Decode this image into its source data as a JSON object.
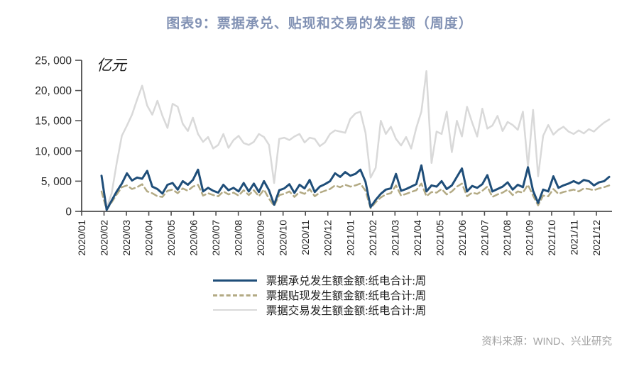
{
  "title": "图表9：票据承兑、贴现和交易的发生额（周度）",
  "source": "资料来源：WIND、兴业研究",
  "unit_label": "亿元",
  "colors": {
    "title_text": "#8292b4",
    "acceptance_line": "#1f4e79",
    "discount_line": "#b3aa84",
    "trading_line": "#d9d9d9",
    "axis": "#4d4d4d",
    "tick_text": "#262626",
    "source_text": "#a3a3a3"
  },
  "legend": [
    {
      "label": "票据承兑发生额金额:纸电合计:周",
      "style": "solid",
      "color": "#1f4e79"
    },
    {
      "label": "票据贴现发生额金额:纸电合计:周",
      "style": "dashed",
      "color": "#b3aa84"
    },
    {
      "label": "票据交易发生额金额:纸电合计:周",
      "style": "solid",
      "color": "#d9d9d9"
    }
  ],
  "chart_data": {
    "type": "line",
    "title": "图表9：票据承兑、贴现和交易的发生额（周度）",
    "xlabel": "",
    "ylabel": "亿元",
    "ylim": [
      0,
      25000
    ],
    "ytick_step": 5000,
    "ytick_labels": [
      "0",
      "5, 000",
      "10, 000",
      "15, 000",
      "20, 000",
      "25, 000"
    ],
    "grid": false,
    "legend_position": "bottom",
    "x_unit": "week",
    "x_tick_labels": [
      "2020/01",
      "2020/02",
      "2020/03",
      "2020/04",
      "2020/05",
      "2020/06",
      "2020/07",
      "2020/08",
      "2020/09",
      "2020/10",
      "2020/11",
      "2020/12",
      "2021/01",
      "2021/02",
      "2021/03",
      "2021/04",
      "2021/05",
      "2021/06",
      "2021/07",
      "2021/08",
      "2021/09",
      "2021/10",
      "2021/11",
      "2021/12"
    ],
    "series": [
      {
        "name": "票据承兑发生额金额:纸电合计:周",
        "color": "#1f4e79",
        "style": "solid",
        "values": [
          5900,
          250,
          1800,
          3300,
          4600,
          6300,
          5100,
          5600,
          5400,
          6700,
          4100,
          3700,
          2950,
          4400,
          4700,
          3600,
          5000,
          4400,
          5200,
          6900,
          3300,
          3900,
          3400,
          3100,
          4400,
          3500,
          3900,
          3300,
          4700,
          3300,
          4600,
          3200,
          5000,
          3500,
          1100,
          3500,
          3800,
          4500,
          3050,
          4400,
          3800,
          5200,
          3200,
          4100,
          4500,
          5000,
          6300,
          5700,
          6500,
          5900,
          6200,
          6900,
          4900,
          700,
          1900,
          2900,
          3600,
          3800,
          6200,
          3400,
          3700,
          4100,
          4500,
          7600,
          3300,
          4300,
          4100,
          5000,
          3700,
          4300,
          5700,
          7100,
          3300,
          4200,
          3900,
          4500,
          6000,
          3300,
          3700,
          4100,
          4800,
          3600,
          4400,
          4000,
          7300,
          3400,
          1400,
          3600,
          3300,
          5800,
          3900,
          4300,
          4600,
          5000,
          4600,
          5200,
          5000,
          4300,
          4800,
          5000,
          5700
        ]
      },
      {
        "name": "票据贴现发生额金额:纸电合计:周",
        "color": "#b3aa84",
        "style": "dashed",
        "values": [
          3300,
          250,
          1500,
          2800,
          4000,
          4300,
          3700,
          4000,
          4500,
          3300,
          3000,
          2500,
          2400,
          3400,
          3600,
          3000,
          3800,
          3400,
          4100,
          4400,
          2600,
          3000,
          2700,
          2500,
          3300,
          2800,
          3100,
          2600,
          3500,
          2700,
          3500,
          2500,
          3600,
          2100,
          900,
          2700,
          2900,
          3300,
          2400,
          3200,
          2900,
          3700,
          2500,
          3100,
          3400,
          3700,
          4300,
          4000,
          4400,
          4100,
          4300,
          4600,
          3400,
          500,
          1500,
          2300,
          2800,
          3000,
          4300,
          2600,
          2900,
          3200,
          3500,
          4600,
          2500,
          3200,
          3100,
          3700,
          2800,
          3300,
          4100,
          4600,
          2500,
          3100,
          2900,
          3400,
          4100,
          2400,
          2800,
          3100,
          3600,
          2700,
          3300,
          3100,
          4400,
          2600,
          1000,
          2600,
          2500,
          3700,
          2900,
          3200,
          3400,
          3600,
          3300,
          3800,
          3700,
          3500,
          3800,
          4000,
          4300
        ]
      },
      {
        "name": "票据交易发生额金额:纸电合计:周",
        "color": "#d9d9d9",
        "style": "solid",
        "values": [
          null,
          500,
          3000,
          8000,
          12500,
          14200,
          16000,
          18500,
          20800,
          17500,
          16000,
          18300,
          15800,
          13800,
          17800,
          17300,
          14500,
          13300,
          15500,
          12800,
          11500,
          12300,
          10400,
          11000,
          12800,
          10500,
          11800,
          12500,
          11300,
          11000,
          11500,
          12800,
          12300,
          11000,
          4700,
          12000,
          12200,
          11800,
          12400,
          12800,
          11400,
          12200,
          12000,
          10800,
          11400,
          12800,
          13400,
          13200,
          13000,
          15300,
          16200,
          16500,
          13000,
          5600,
          7200,
          15000,
          12800,
          14000,
          12000,
          10900,
          12300,
          10400,
          13800,
          16500,
          23200,
          8000,
          13200,
          12800,
          16500,
          9800,
          15000,
          12400,
          17300,
          14700,
          12400,
          17000,
          13700,
          14200,
          15800,
          13300,
          14800,
          14300,
          13500,
          16500,
          7400,
          16800,
          5800,
          12500,
          14300,
          12700,
          13500,
          14000,
          13200,
          12800,
          13400,
          12900,
          13600,
          13200,
          14000,
          14700,
          15200
        ]
      }
    ]
  }
}
